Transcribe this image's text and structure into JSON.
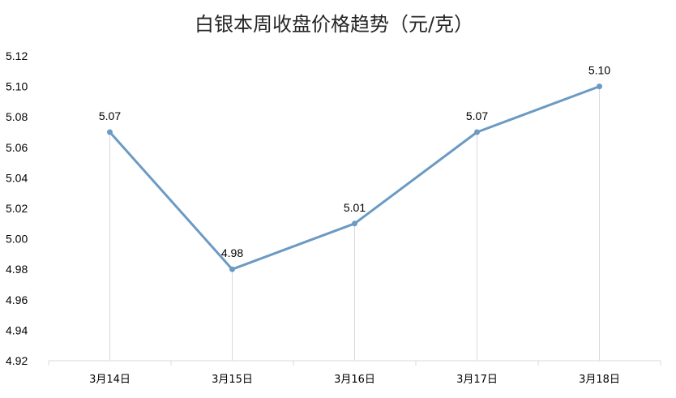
{
  "chart_data": {
    "type": "line",
    "title": "白银本周收盘价格趋势（元/克）",
    "categories": [
      "3月14日",
      "3月15日",
      "3月16日",
      "3月17日",
      "3月18日"
    ],
    "values": [
      5.07,
      4.98,
      5.01,
      5.07,
      5.1
    ],
    "data_labels": [
      "5.07",
      "4.98",
      "5.01",
      "5.07",
      "5.10"
    ],
    "ylim": [
      4.92,
      5.12
    ],
    "yticks": [
      "4.92",
      "4.94",
      "4.96",
      "4.98",
      "5.00",
      "5.02",
      "5.04",
      "5.06",
      "5.08",
      "5.10",
      "5.12"
    ],
    "xlabel": "",
    "ylabel": "",
    "grid": "vertical drop lines only",
    "legend": "none",
    "colors": {
      "line": "#6b9ac4",
      "axis": "#d9d9d9",
      "dropline": "#d9d9d9"
    }
  }
}
